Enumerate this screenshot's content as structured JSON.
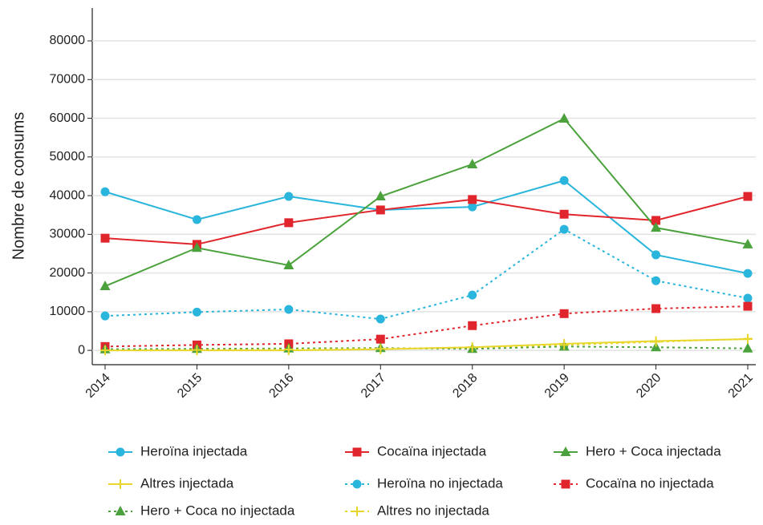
{
  "chart_data": {
    "type": "line",
    "y_label": "Nombre de consums",
    "categories": [
      "2014",
      "2015",
      "2016",
      "2017",
      "2018",
      "2019",
      "2020",
      "2021"
    ],
    "ylim": [
      -3700,
      88500
    ],
    "yticks": [
      0,
      10000,
      20000,
      30000,
      40000,
      50000,
      60000,
      70000,
      80000
    ],
    "grid": true,
    "series": [
      {
        "name": "Heroïna injectada",
        "color": "#29b5dc",
        "marker": "circle",
        "dashed": false,
        "values": [
          41000,
          33800,
          39800,
          36300,
          37100,
          43900,
          24700,
          19900
        ]
      },
      {
        "name": "Cocaïna injectada",
        "color": "#e0262c",
        "marker": "square",
        "dashed": false,
        "values": [
          29000,
          27400,
          33000,
          36300,
          39000,
          35200,
          33600,
          39800
        ]
      },
      {
        "name": "Hero + Coca injectada",
        "color": "#4ba23c",
        "marker": "triangle",
        "dashed": false,
        "values": [
          16600,
          26500,
          22000,
          39800,
          48100,
          59900,
          31700,
          27400
        ]
      },
      {
        "name": "Altres injectada",
        "color": "#e8d62a",
        "marker": "plus",
        "dashed": false,
        "values": [
          0,
          0,
          0,
          300,
          800,
          1700,
          2400,
          2900
        ]
      },
      {
        "name": "Heroïna no injectada",
        "color": "#29b5dc",
        "marker": "circle",
        "dashed": true,
        "values": [
          8900,
          9900,
          10600,
          8100,
          14300,
          31300,
          18000,
          13500
        ]
      },
      {
        "name": "Cocaïna no injectada",
        "color": "#e0262c",
        "marker": "square",
        "dashed": true,
        "values": [
          1000,
          1400,
          1700,
          2900,
          6400,
          9500,
          10800,
          11400
        ]
      },
      {
        "name": "Hero + Coca no injectada",
        "color": "#4ba23c",
        "marker": "triangle",
        "dashed": true,
        "values": [
          300,
          400,
          500,
          600,
          400,
          1000,
          800,
          500
        ]
      },
      {
        "name": "Altres no injectada",
        "color": "#e8d62a",
        "marker": "plus",
        "dashed": true,
        "values": [
          0,
          100,
          200,
          400,
          800,
          1400,
          2200,
          3000
        ]
      }
    ]
  }
}
